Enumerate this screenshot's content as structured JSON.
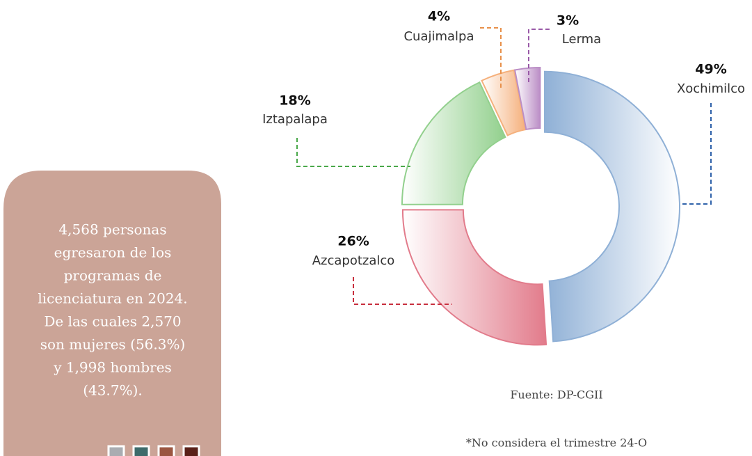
{
  "sidebar": {
    "lines": [
      "4,568 personas",
      "egresaron de los",
      "programas de",
      "licenciatura en 2024.",
      "De las cuales 2,570",
      "son mujeres (56.3%)",
      "y 1,998 hombres",
      "(43.7%)."
    ]
  },
  "chart_data": {
    "type": "donut",
    "categories": [
      "Xochimilco",
      "Azcapotzalco",
      "Iztapalapa",
      "Cuajimalpa",
      "Lerma"
    ],
    "values": [
      49,
      26,
      18,
      4,
      3
    ],
    "value_labels": [
      "49%",
      "26%",
      "18%",
      "4%",
      "3%"
    ],
    "colors": [
      "#8fb0d6",
      "#e27b8b",
      "#92d08d",
      "#f5b07c",
      "#bb8ec6"
    ],
    "leader_colors": [
      "#2f62aa",
      "#c8303f",
      "#4aa84a",
      "#e8904a",
      "#9a5aa8"
    ],
    "source": "Fuente: DP-CGII",
    "note": "*No considera el trimestre 24-O"
  }
}
